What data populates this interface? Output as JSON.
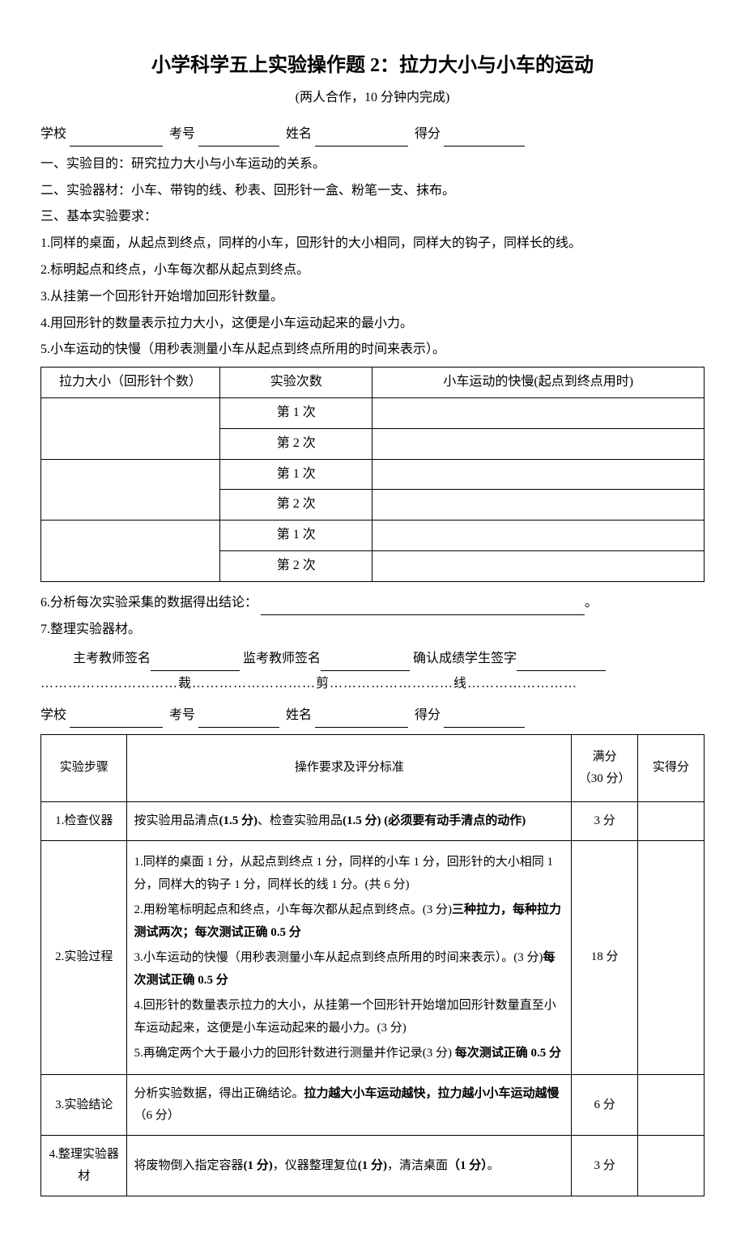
{
  "title": "小学科学五上实验操作题 2：拉力大小与小车的运动",
  "subtitle": "(两人合作，10 分钟内完成)",
  "form": {
    "school_label": "学校",
    "exam_no_label": "考号",
    "name_label": "姓名",
    "score_label": "得分"
  },
  "sections": {
    "s1": "一、实验目的：研究拉力大小与小车运动的关系。",
    "s2": "二、实验器材：小车、带钩的线、秒表、回形针一盒、粉笔一支、抹布。",
    "s3": "三、基本实验要求：",
    "req1": "1.同样的桌面，从起点到终点，同样的小车，回形针的大小相同，同样大的钩子，同样长的线。",
    "req2": "2.标明起点和终点，小车每次都从起点到终点。",
    "req3": "3.从挂第一个回形针开始增加回形针数量。",
    "req4": "4.用回形针的数量表示拉力大小，这便是小车运动起来的最小力。",
    "req5": "5.小车运动的快慢（用秒表测量小车从起点到终点所用的时间来表示）。",
    "req6": "6.分析每次实验采集的数据得出结论：",
    "req7": "7.整理实验器材。"
  },
  "data_table": {
    "col1_header": "拉力大小（回形针个数）",
    "col2_header": "实验次数",
    "col3_header": "小车运动的快慢(起点到终点用时)",
    "trial1": "第 1 次",
    "trial2": "第 2 次"
  },
  "signatures": {
    "main_examiner": "主考教师签名",
    "supervisor": "监考教师签名",
    "student_confirm": "确认成绩学生签字"
  },
  "cut_line": "…………………………裁………………………剪………………………线……………………",
  "grading_table": {
    "header": {
      "step": "实验步骤",
      "criteria": "操作要求及评分标准",
      "max_score": "满分",
      "max_score_note": "（30 分）",
      "actual_score": "实得分"
    },
    "row1": {
      "step": "1.检查仪器",
      "criteria_prefix": "按实验用品清点",
      "criteria_pts1": "(1.5 分)",
      "criteria_mid": "、检查实验用品",
      "criteria_pts2": "(1.5 分)",
      "criteria_bold": " (必须要有动手清点的动作)",
      "score": "3 分"
    },
    "row2": {
      "step": "2.实验过程",
      "item1": "1.同样的桌面 1 分，从起点到终点 1 分，同样的小车 1 分，回形针的大小相同 1 分，同样大的钩子 1 分，同样长的线 1 分。(共 6 分)",
      "item2_prefix": "2.用粉笔标明起点和终点，小车每次都从起点到终点。(3 分)",
      "item2_bold": "三种拉力，每种拉力测试两次；每次测试正确 0.5 分",
      "item3_prefix": "3.小车运动的快慢（用秒表测量小车从起点到终点所用的时间来表示）。(3 分)",
      "item3_bold": "每次测试正确 0.5 分",
      "item4": "4.回形针的数量表示拉力的大小，从挂第一个回形针开始增加回形针数量直至小车运动起来，这便是小车运动起来的最小力。(3 分)",
      "item5_prefix": "5.再确定两个大于最小力的回形针数进行测量并作记录(3 分)",
      "item5_bold": " 每次测试正确 0.5 分",
      "score": "18 分"
    },
    "row3": {
      "step": "3.实验结论",
      "criteria_prefix": "分析实验数据，得出正确结论。",
      "criteria_bold": "拉力越大小车运动越快，拉力越小小车运动越慢",
      "criteria_suffix": "（6 分）",
      "score": "6 分"
    },
    "row4": {
      "step": "4.整理实验器材",
      "criteria_p1": "将废物倒入指定容器",
      "criteria_pts1": "(1 分)",
      "criteria_p2": "，仪器整理复位",
      "criteria_pts2": "(1 分)",
      "criteria_p3": "，清洁桌面",
      "criteria_pts3": "（1 分）",
      "criteria_p4": "。",
      "score": "3 分"
    }
  }
}
